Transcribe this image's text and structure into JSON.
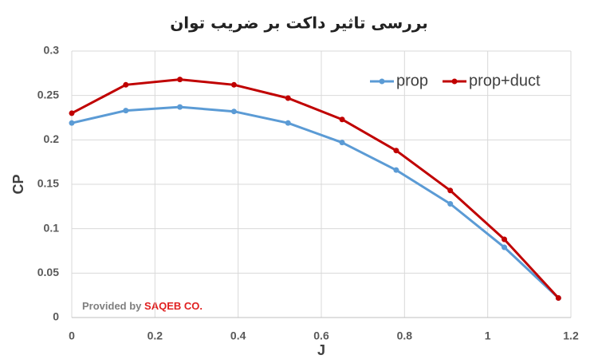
{
  "chart_data": {
    "type": "line",
    "title": "بررسی تاثیر داکت بر ضریب توان",
    "x_label": "J",
    "y_label": "CP",
    "x": [
      0,
      0.13,
      0.26,
      0.39,
      0.52,
      0.65,
      0.78,
      0.91,
      1.04,
      1.17
    ],
    "series": [
      {
        "name": "prop",
        "color": "#5b9bd5",
        "values": [
          0.219,
          0.233,
          0.237,
          0.232,
          0.219,
          0.197,
          0.166,
          0.128,
          0.079,
          0.022
        ]
      },
      {
        "name": "prop+duct",
        "color": "#c00000",
        "values": [
          0.23,
          0.262,
          0.268,
          0.262,
          0.247,
          0.223,
          0.188,
          0.143,
          0.088,
          0.022
        ]
      }
    ],
    "xlim": [
      0,
      1.2
    ],
    "xticks": [
      0,
      0.2,
      0.4,
      0.6,
      0.8,
      1,
      1.2
    ],
    "ylim": [
      0,
      0.3
    ],
    "yticks": [
      0,
      0.05,
      0.1,
      0.15,
      0.2,
      0.25,
      0.3
    ],
    "grid": true,
    "legend": "upper right",
    "annotations": [
      "Provided by",
      "SAQEB CO."
    ]
  }
}
